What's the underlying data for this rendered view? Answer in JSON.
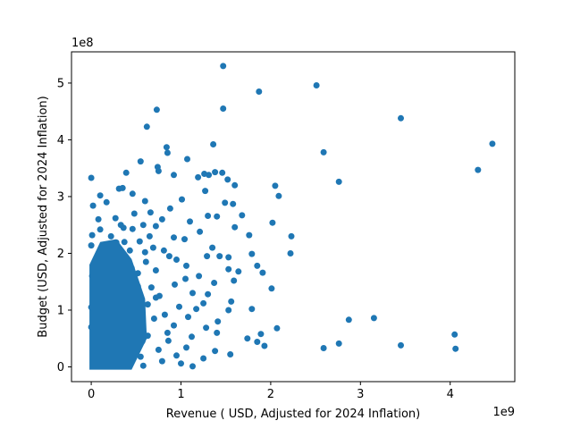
{
  "chart_data": {
    "type": "scatter",
    "xlabel": "Revenue ( USD, Adjusted for 2024 Inflation)",
    "ylabel": "Budget (USD, Adjusted for 2024 Inflation)",
    "x_offset_text": "1e9",
    "y_offset_text": "1e8",
    "xlim": [
      -0.22,
      4.72
    ],
    "ylim": [
      -0.26,
      5.55
    ],
    "x_ticks": [
      0,
      1,
      2,
      3,
      4
    ],
    "x_tick_labels": [
      "0",
      "1",
      "2",
      "3",
      "4"
    ],
    "y_ticks": [
      0,
      1,
      2,
      3,
      4,
      5
    ],
    "y_tick_labels": [
      "0",
      "1",
      "2",
      "3",
      "4",
      "5"
    ],
    "grid": false,
    "legend": "none",
    "marker_color": "#1f77b4",
    "x_unit_multiplier": 1000000000.0,
    "y_unit_multiplier": 100000000.0,
    "series": [
      {
        "points": [
          [
            1.47,
            5.3
          ],
          [
            2.51,
            4.96
          ],
          [
            1.87,
            4.85
          ],
          [
            1.47,
            4.55
          ],
          [
            0.73,
            4.53
          ],
          [
            3.45,
            4.38
          ],
          [
            0.62,
            4.23
          ],
          [
            4.47,
            3.93
          ],
          [
            1.36,
            3.92
          ],
          [
            0.84,
            3.87
          ],
          [
            2.59,
            3.78
          ],
          [
            0.85,
            3.77
          ],
          [
            1.07,
            3.66
          ],
          [
            0.55,
            3.62
          ],
          [
            0.74,
            3.52
          ],
          [
            4.31,
            3.47
          ],
          [
            0.75,
            3.45
          ],
          [
            1.38,
            3.43
          ],
          [
            1.46,
            3.42
          ],
          [
            0.39,
            3.42
          ],
          [
            1.26,
            3.4
          ],
          [
            0.92,
            3.38
          ],
          [
            1.31,
            3.38
          ],
          [
            1.19,
            3.34
          ],
          [
            0.0,
            3.33
          ],
          [
            2.76,
            3.26
          ],
          [
            1.52,
            3.3
          ],
          [
            1.6,
            3.2
          ],
          [
            2.05,
            3.19
          ],
          [
            0.1,
            3.02
          ],
          [
            2.09,
            3.01
          ],
          [
            1.27,
            3.1
          ],
          [
            1.01,
            2.95
          ],
          [
            0.31,
            3.14
          ],
          [
            0.35,
            3.15
          ],
          [
            0.02,
            2.84
          ],
          [
            0.6,
            2.92
          ],
          [
            0.17,
            2.9
          ],
          [
            1.49,
            2.89
          ],
          [
            1.58,
            2.87
          ],
          [
            0.66,
            2.72
          ],
          [
            1.3,
            2.66
          ],
          [
            0.88,
            2.79
          ],
          [
            0.27,
            2.62
          ],
          [
            1.68,
            2.67
          ],
          [
            1.4,
            2.65
          ],
          [
            1.1,
            2.56
          ],
          [
            2.02,
            2.54
          ],
          [
            0.36,
            2.45
          ],
          [
            0.72,
            2.48
          ],
          [
            1.6,
            2.46
          ],
          [
            0.46,
            2.43
          ],
          [
            1.21,
            2.38
          ],
          [
            0.01,
            2.32
          ],
          [
            2.23,
            2.3
          ],
          [
            0.1,
            2.42
          ],
          [
            0.92,
            2.28
          ],
          [
            1.76,
            2.32
          ],
          [
            1.04,
            2.25
          ],
          [
            0.54,
            2.21
          ],
          [
            0.28,
            2.19
          ],
          [
            1.35,
            2.1
          ],
          [
            1.79,
            1.99
          ],
          [
            2.22,
            2.0
          ],
          [
            0.0,
            2.14
          ],
          [
            0.81,
            2.05
          ],
          [
            0.6,
            2.02
          ],
          [
            1.29,
            1.95
          ],
          [
            1.43,
            1.95
          ],
          [
            1.53,
            1.93
          ],
          [
            0.95,
            1.89
          ],
          [
            1.06,
            1.78
          ],
          [
            1.85,
            1.78
          ],
          [
            1.53,
            1.72
          ],
          [
            0.21,
            1.85
          ],
          [
            0.45,
            1.74
          ],
          [
            0.15,
            1.66
          ],
          [
            0.72,
            1.7
          ],
          [
            1.64,
            1.68
          ],
          [
            1.91,
            1.66
          ],
          [
            0.32,
            1.6
          ],
          [
            1.2,
            1.6
          ],
          [
            1.05,
            1.55
          ],
          [
            1.59,
            1.52
          ],
          [
            1.37,
            1.48
          ],
          [
            0.93,
            1.45
          ],
          [
            0.52,
            1.42
          ],
          [
            2.01,
            1.38
          ],
          [
            1.13,
            1.3
          ],
          [
            1.3,
            1.28
          ],
          [
            0.09,
            1.3
          ],
          [
            0.25,
            1.35
          ],
          [
            0.72,
            1.22
          ],
          [
            0.44,
            1.18
          ],
          [
            1.56,
            1.15
          ],
          [
            1.25,
            1.12
          ],
          [
            0.63,
            1.1
          ],
          [
            0.98,
            1.06
          ],
          [
            1.17,
            1.02
          ],
          [
            1.79,
            1.02
          ],
          [
            1.53,
            1.0
          ],
          [
            0.35,
            0.98
          ],
          [
            0.04,
            0.95
          ],
          [
            0.82,
            0.92
          ],
          [
            1.08,
            0.88
          ],
          [
            2.87,
            0.83
          ],
          [
            3.15,
            0.86
          ],
          [
            1.41,
            0.8
          ],
          [
            0.56,
            0.76
          ],
          [
            0.92,
            0.73
          ],
          [
            1.28,
            0.69
          ],
          [
            2.07,
            0.68
          ],
          [
            0.2,
            0.66
          ],
          [
            1.4,
            0.6
          ],
          [
            1.89,
            0.58
          ],
          [
            0.63,
            0.55
          ],
          [
            1.12,
            0.53
          ],
          [
            0.31,
            0.5
          ],
          [
            1.74,
            0.5
          ],
          [
            0.86,
            0.46
          ],
          [
            1.85,
            0.44
          ],
          [
            2.76,
            0.41
          ],
          [
            0.49,
            0.4
          ],
          [
            3.45,
            0.38
          ],
          [
            1.93,
            0.37
          ],
          [
            0.12,
            0.36
          ],
          [
            1.06,
            0.34
          ],
          [
            2.59,
            0.33
          ],
          [
            4.06,
            0.32
          ],
          [
            0.75,
            0.3
          ],
          [
            1.38,
            0.28
          ],
          [
            0.24,
            0.25
          ],
          [
            1.55,
            0.22
          ],
          [
            0.95,
            0.2
          ],
          [
            0.55,
            0.18
          ],
          [
            1.25,
            0.15
          ],
          [
            0.35,
            0.12
          ],
          [
            0.79,
            0.1
          ],
          [
            1.0,
            0.06
          ],
          [
            0.12,
            0.04
          ],
          [
            0.58,
            0.02
          ],
          [
            1.13,
            0.01
          ],
          [
            4.05,
            0.57
          ],
          [
            0.04,
            0.15
          ],
          [
            0.26,
            0.08
          ],
          [
            0.4,
            0.6
          ],
          [
            0.16,
            1.1
          ],
          [
            0.06,
            1.9
          ],
          [
            0.22,
            2.3
          ],
          [
            0.48,
            2.7
          ],
          [
            0.02,
            0.5
          ],
          [
            0.3,
            1.7
          ],
          [
            0.67,
            1.4
          ],
          [
            0.79,
            2.6
          ],
          [
            0.13,
            0.8
          ],
          [
            0.08,
            2.6
          ],
          [
            0.46,
            3.05
          ],
          [
            0.58,
            2.5
          ],
          [
            0.36,
            0.3
          ],
          [
            0.19,
            1.45
          ],
          [
            0.7,
            0.85
          ],
          [
            0.43,
            2.05
          ],
          [
            0.05,
            1.2
          ],
          [
            0.28,
            0.95
          ],
          [
            0.87,
            1.95
          ],
          [
            0.1,
            0.35
          ],
          [
            0.52,
            1.65
          ],
          [
            0.65,
            2.3
          ],
          [
            0.33,
            2.5
          ],
          [
            0.0,
            0.7
          ],
          [
            0.01,
            1.6
          ],
          [
            0.0,
            1.05
          ],
          [
            0.03,
            0.25
          ],
          [
            0.14,
            2.05
          ],
          [
            0.41,
            1.3
          ],
          [
            0.24,
            0.55
          ],
          [
            0.76,
            1.25
          ],
          [
            0.57,
            0.45
          ],
          [
            0.18,
            1.8
          ],
          [
            0.37,
            2.2
          ],
          [
            0.85,
            0.6
          ],
          [
            0.09,
            1.55
          ],
          [
            0.61,
            1.85
          ],
          [
            0.47,
            0.85
          ],
          [
            0.69,
            2.1
          ]
        ]
      }
    ]
  }
}
